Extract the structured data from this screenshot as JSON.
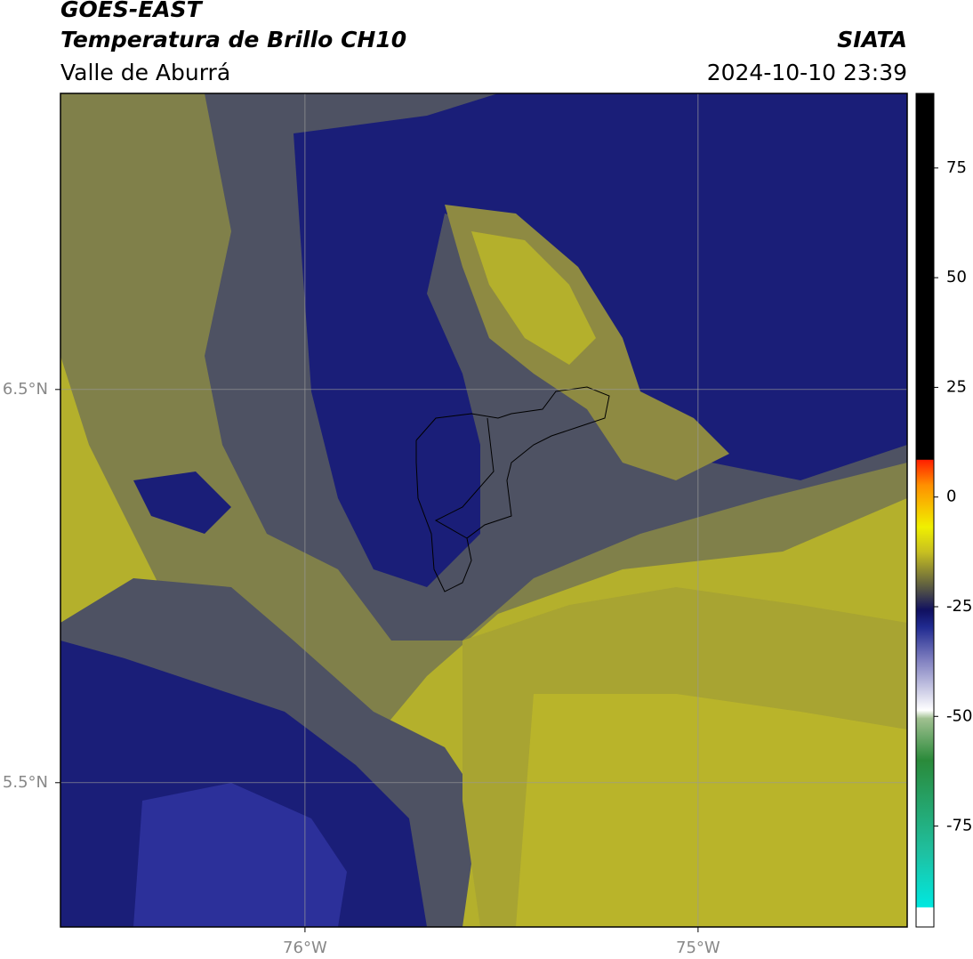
{
  "header": {
    "title": "GOES-EAST",
    "subtitle": "Temperatura de Brillo CH10",
    "region": "Valle de Aburrá",
    "source": "SIATA",
    "datetime": "2024-10-10 23:39"
  },
  "map": {
    "type": "contour",
    "xlim": [
      -76.622,
      -74.468
    ],
    "ylim": [
      5.133,
      7.253
    ],
    "xticks": [
      {
        "value": -76,
        "label": "76°W"
      },
      {
        "value": -75,
        "label": "75°W"
      }
    ],
    "yticks": [
      {
        "value": 6.5,
        "label": "6.5°N"
      },
      {
        "value": 5.5,
        "label": "5.5°N"
      }
    ],
    "grid": true
  },
  "colorbar": {
    "lim": [
      -98,
      92
    ],
    "ticks": [
      75,
      50,
      25,
      0,
      -25,
      -50,
      -75
    ]
  }
}
